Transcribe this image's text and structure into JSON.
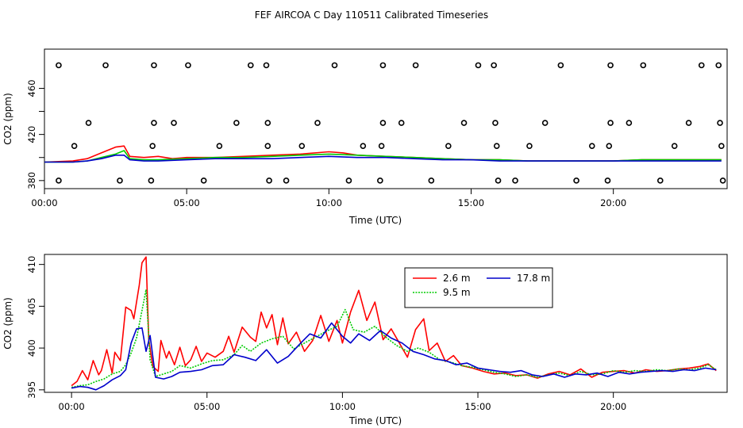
{
  "page_title": "FEF AIRCOA C  Day 110511  Calibrated Timeseries",
  "colors": {
    "red": "#ff0000",
    "green": "#00cc00",
    "blue": "#0000cc",
    "frame": "#000000"
  },
  "chart_data": [
    {
      "id": "top",
      "type": "scatter",
      "title": "",
      "xlabel": "Time (UTC)",
      "ylabel": "CO2 (ppm)",
      "xlim": [
        0,
        24
      ],
      "ylim": [
        373,
        494
      ],
      "x_ticks": [
        0,
        5,
        10,
        15,
        20
      ],
      "x_tick_labels": [
        "00:00",
        "05:00",
        "10:00",
        "15:00",
        "20:00"
      ],
      "y_ticks": [
        380,
        420,
        460
      ],
      "y_tick_labels": [
        "380",
        "420",
        "460"
      ],
      "y_minor_ticks": [
        400,
        440
      ],
      "points": {
        "x": [
          0.5,
          2.15,
          3.85,
          5.05,
          7.25,
          7.8,
          10.2,
          11.9,
          13.05,
          15.25,
          15.8,
          18.15,
          19.9,
          21.05,
          23.1,
          23.7,
          1.55,
          3.85,
          4.55,
          6.75,
          7.85,
          9.6,
          11.9,
          12.55,
          14.75,
          15.85,
          17.6,
          19.9,
          20.55,
          22.65,
          23.75,
          1.05,
          3.8,
          6.15,
          7.85,
          9.05,
          11.2,
          11.85,
          14.2,
          15.9,
          17.05,
          19.25,
          19.85,
          22.15,
          23.8,
          0.5,
          2.65,
          3.75,
          5.6,
          7.9,
          8.5,
          10.7,
          11.8,
          13.6,
          15.95,
          16.55,
          18.7,
          19.8,
          21.65,
          23.85
        ],
        "y": [
          480,
          480,
          480,
          480,
          480,
          480,
          480,
          480,
          480,
          480,
          480,
          480,
          480,
          480,
          480,
          480,
          430,
          430,
          430,
          430,
          430,
          430,
          430,
          430,
          430,
          430,
          430,
          430,
          430,
          430,
          430,
          410,
          410,
          410,
          410,
          410,
          410,
          410,
          410,
          410,
          410,
          410,
          410,
          410,
          410,
          380,
          380,
          380,
          380,
          380,
          380,
          380,
          380,
          380,
          380,
          380,
          380,
          380,
          380,
          380
        ]
      },
      "series": [
        {
          "name": "2.6 m",
          "color": "#ff0000",
          "x": [
            0,
            1.0,
            1.5,
            2.0,
            2.5,
            2.8,
            3.0,
            3.5,
            4.0,
            4.5,
            5.0,
            6.0,
            7.0,
            8.0,
            9.0,
            10.0,
            10.5,
            11.0,
            12.0,
            13.0,
            14.0,
            15.0,
            16.0,
            17.0,
            18.0,
            19.0,
            20.0,
            21.0,
            22.0,
            23.0,
            23.8
          ],
          "values": [
            396,
            397,
            399,
            404,
            409,
            410,
            401,
            400,
            401,
            399,
            400,
            400,
            401,
            402,
            403,
            405,
            404,
            402,
            401,
            400,
            399,
            398,
            398,
            397,
            397,
            397,
            397,
            398,
            398,
            398,
            398
          ]
        },
        {
          "name": "9.5 m",
          "color": "#00cc00",
          "x": [
            0,
            1.0,
            1.5,
            2.0,
            2.5,
            2.8,
            3.0,
            3.5,
            4.0,
            5.0,
            6.0,
            7.0,
            8.0,
            9.0,
            10.0,
            11.0,
            12.0,
            13.0,
            14.0,
            15.0,
            16.0,
            17.0,
            18.0,
            19.0,
            20.0,
            21.0,
            22.0,
            23.0,
            23.8
          ],
          "values": [
            396,
            396,
            397,
            400,
            403,
            406,
            399,
            398,
            398,
            399,
            400,
            400,
            401,
            402,
            403,
            402,
            401,
            400,
            399,
            398,
            398,
            397,
            397,
            397,
            397,
            398,
            398,
            398,
            398
          ]
        },
        {
          "name": "17.8 m",
          "color": "#0000cc",
          "x": [
            0,
            1.0,
            1.5,
            2.0,
            2.5,
            2.8,
            3.0,
            3.5,
            4.0,
            5.0,
            6.0,
            7.0,
            8.0,
            9.0,
            10.0,
            11.0,
            12.0,
            13.0,
            14.0,
            15.0,
            16.0,
            17.0,
            18.0,
            19.0,
            20.0,
            21.0,
            22.0,
            23.0,
            23.8
          ],
          "values": [
            396,
            396,
            397,
            399,
            402,
            402,
            398,
            397,
            397,
            398,
            399,
            399,
            399,
            400,
            401,
            400,
            400,
            399,
            398,
            398,
            397,
            397,
            397,
            397,
            397,
            397,
            397,
            397,
            397
          ]
        }
      ]
    },
    {
      "id": "bottom",
      "type": "line",
      "title": "",
      "xlabel": "Time (UTC)",
      "ylabel": "CO2 (ppm)",
      "xlim": [
        -1,
        24.2
      ],
      "ylim": [
        394.7,
        411.2
      ],
      "x_ticks": [
        0,
        5,
        10,
        15,
        20
      ],
      "x_tick_labels": [
        "00:00",
        "05:00",
        "10:00",
        "15:00",
        "20:00"
      ],
      "y_ticks": [
        395,
        400,
        405,
        410
      ],
      "y_tick_labels": [
        "395",
        "400",
        "405",
        "410"
      ],
      "legend": {
        "position": "top-center",
        "entries": [
          "2.6 m",
          "9.5 m",
          "17.8 m"
        ]
      },
      "series": [
        {
          "name": "2.6 m",
          "color": "#ff0000",
          "dash": "solid",
          "x": [
            0,
            0.2,
            0.4,
            0.6,
            0.8,
            1.0,
            1.1,
            1.3,
            1.5,
            1.6,
            1.8,
            2.0,
            2.2,
            2.3,
            2.5,
            2.6,
            2.75,
            2.85,
            3.0,
            3.2,
            3.3,
            3.5,
            3.6,
            3.8,
            4.0,
            4.2,
            4.4,
            4.6,
            4.8,
            5.0,
            5.3,
            5.6,
            5.8,
            6.0,
            6.3,
            6.6,
            6.8,
            7.0,
            7.2,
            7.4,
            7.6,
            7.8,
            8.0,
            8.3,
            8.6,
            8.9,
            9.2,
            9.5,
            9.8,
            10.0,
            10.3,
            10.6,
            10.9,
            11.2,
            11.5,
            11.8,
            12.1,
            12.4,
            12.7,
            13.0,
            13.2,
            13.5,
            13.8,
            14.1,
            14.4,
            14.8,
            15.2,
            15.6,
            16.0,
            16.4,
            16.8,
            17.2,
            17.6,
            18.0,
            18.4,
            18.8,
            19.2,
            19.6,
            20.0,
            20.4,
            20.8,
            21.2,
            21.6,
            22.0,
            22.4,
            22.8,
            23.2,
            23.5,
            23.8
          ],
          "values": [
            395.5,
            396.0,
            397.3,
            396.2,
            398.5,
            396.8,
            397.3,
            399.8,
            397.0,
            399.5,
            398.5,
            404.9,
            404.5,
            403.5,
            407.5,
            410.2,
            410.9,
            401.0,
            397.8,
            397.2,
            400.9,
            398.8,
            399.6,
            398.0,
            400.1,
            397.9,
            398.6,
            400.2,
            398.4,
            399.4,
            398.9,
            399.6,
            401.4,
            399.5,
            402.5,
            401.3,
            400.8,
            404.3,
            402.4,
            404.0,
            400.4,
            403.6,
            400.5,
            401.9,
            399.6,
            400.9,
            403.9,
            400.8,
            403.3,
            400.6,
            404.3,
            406.9,
            403.3,
            405.5,
            401.0,
            402.3,
            400.6,
            398.9,
            402.2,
            403.5,
            399.7,
            400.6,
            398.4,
            399.1,
            397.9,
            397.6,
            397.2,
            396.9,
            397.0,
            396.7,
            396.8,
            396.4,
            396.9,
            397.2,
            396.8,
            397.5,
            396.5,
            397.1,
            397.2,
            397.3,
            397.0,
            397.4,
            397.2,
            397.3,
            397.5,
            397.6,
            397.8,
            398.1,
            397.3
          ]
        },
        {
          "name": "9.5 m",
          "color": "#00cc00",
          "dash": "dotted",
          "x": [
            0,
            0.3,
            0.6,
            0.9,
            1.2,
            1.5,
            1.8,
            2.0,
            2.2,
            2.4,
            2.6,
            2.75,
            2.9,
            3.1,
            3.4,
            3.7,
            4.0,
            4.4,
            4.8,
            5.2,
            5.6,
            6.0,
            6.3,
            6.6,
            7.0,
            7.4,
            7.8,
            8.2,
            8.6,
            9.0,
            9.4,
            9.8,
            10.1,
            10.4,
            10.8,
            11.2,
            11.6,
            12.0,
            12.4,
            12.8,
            13.2,
            13.6,
            14.0,
            14.4,
            14.8,
            15.2,
            15.6,
            16.0,
            16.4,
            16.8,
            17.2,
            17.6,
            18.0,
            18.4,
            18.8,
            19.2,
            19.6,
            20.0,
            20.4,
            20.8,
            21.2,
            21.6,
            22.0,
            22.4,
            22.8,
            23.2,
            23.5,
            23.8
          ],
          "values": [
            395.3,
            395.5,
            395.6,
            396.0,
            396.3,
            396.9,
            397.2,
            398.0,
            399.4,
            401.2,
            404.5,
            407.0,
            398.6,
            396.6,
            396.9,
            397.2,
            397.9,
            397.6,
            398.1,
            398.5,
            398.6,
            399.2,
            400.3,
            399.6,
            400.6,
            401.1,
            401.4,
            399.9,
            400.6,
            401.3,
            402.0,
            402.6,
            404.6,
            402.2,
            401.9,
            402.6,
            401.3,
            400.3,
            399.6,
            400.0,
            399.5,
            398.6,
            398.3,
            397.9,
            397.7,
            397.4,
            397.1,
            396.9,
            396.6,
            396.8,
            396.5,
            396.8,
            397.0,
            396.7,
            397.2,
            396.8,
            396.9,
            397.3,
            397.1,
            397.3,
            397.2,
            397.4,
            397.3,
            397.5,
            397.4,
            397.6,
            398.0,
            397.4
          ]
        },
        {
          "name": "17.8 m",
          "color": "#0000cc",
          "dash": "solid",
          "x": [
            0,
            0.3,
            0.6,
            0.9,
            1.2,
            1.5,
            1.8,
            2.0,
            2.2,
            2.4,
            2.6,
            2.75,
            2.9,
            3.1,
            3.4,
            3.7,
            4.0,
            4.4,
            4.8,
            5.2,
            5.6,
            6.0,
            6.4,
            6.8,
            7.2,
            7.6,
            8.0,
            8.4,
            8.8,
            9.2,
            9.6,
            10.0,
            10.3,
            10.6,
            11.0,
            11.4,
            11.8,
            12.2,
            12.6,
            13.0,
            13.4,
            13.8,
            14.2,
            14.6,
            15.0,
            15.4,
            15.8,
            16.2,
            16.6,
            17.0,
            17.4,
            17.8,
            18.2,
            18.6,
            19.0,
            19.4,
            19.8,
            20.2,
            20.6,
            21.0,
            21.4,
            21.8,
            22.2,
            22.6,
            23.0,
            23.4,
            23.8
          ],
          "values": [
            395.2,
            395.4,
            395.3,
            395.0,
            395.5,
            396.2,
            396.7,
            397.4,
            400.6,
            402.3,
            402.4,
            399.6,
            401.5,
            396.5,
            396.3,
            396.6,
            397.1,
            397.2,
            397.4,
            397.9,
            398.0,
            399.2,
            398.9,
            398.5,
            399.8,
            398.2,
            399.0,
            400.4,
            401.7,
            401.2,
            403.0,
            401.4,
            400.6,
            401.7,
            400.9,
            402.1,
            401.2,
            400.6,
            399.6,
            399.2,
            398.7,
            398.5,
            398.0,
            398.2,
            397.6,
            397.4,
            397.2,
            397.1,
            397.3,
            396.8,
            396.6,
            396.9,
            396.5,
            396.9,
            396.8,
            397.0,
            396.6,
            397.1,
            396.9,
            397.1,
            397.2,
            397.3,
            397.2,
            397.4,
            397.3,
            397.6,
            397.4
          ]
        }
      ]
    }
  ]
}
